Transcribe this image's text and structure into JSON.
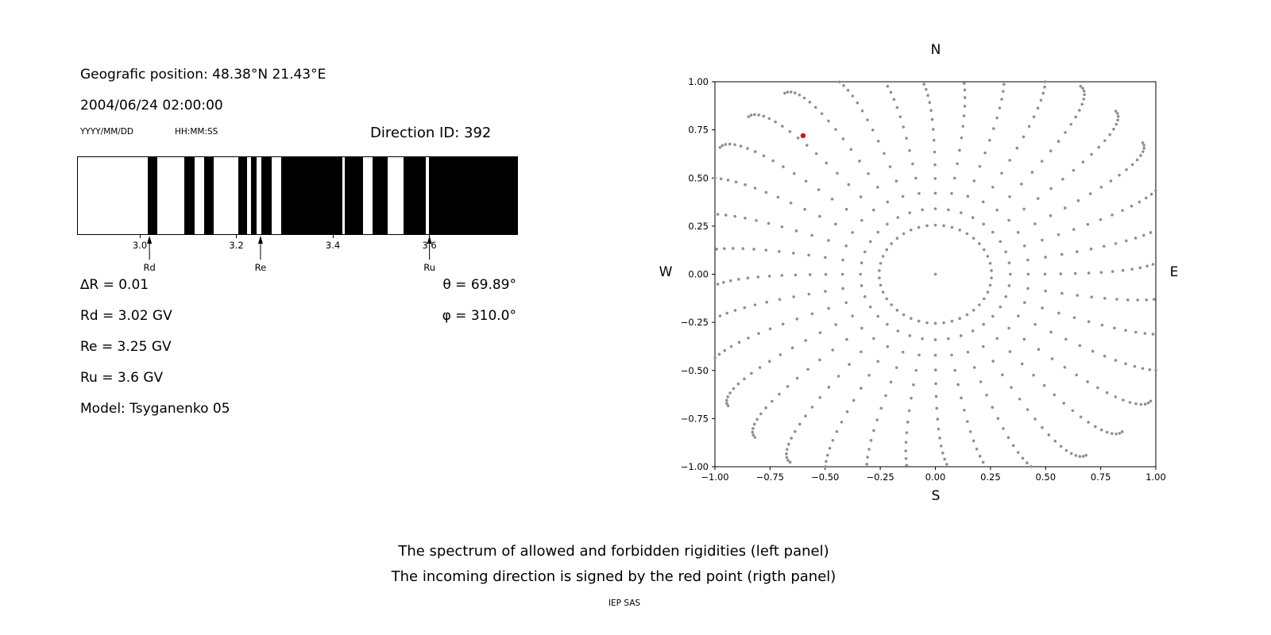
{
  "left_panel": {
    "geographic_position": "Geografic position: 48.38°N 21.43°E",
    "datetime": "2004/06/24 02:00:00",
    "date_format_label": "YYYY/MM/DD",
    "time_format_label": "HH:MM:SS",
    "direction_id": "Direction ID: 392",
    "delta_r": "∆R = 0.01",
    "theta": "θ = 69.89°",
    "rd": "Rd = 3.02 GV",
    "phi": "φ = 310.0°",
    "re": "Re = 3.25 GV",
    "ru": "Ru = 3.6 GV",
    "model": "Model: Tsyganenko 05"
  },
  "caption": {
    "line1": "The spectrum of allowed and forbidden rigidities (left panel)",
    "line2": "The incoming direction is signed by the red point (rigth panel)",
    "credit": "IEP SAS"
  },
  "chart_data": [
    {
      "id": "rigidity-spectrum",
      "type": "bar",
      "description": "Barcode spectrum of rigidities: black bands = allowed, white = forbidden",
      "x_range": [
        2.87,
        3.78
      ],
      "xticks": [
        3.0,
        3.2,
        3.4,
        3.6
      ],
      "xtick_labels": [
        "3.0",
        "3.2",
        "3.4",
        "3.6"
      ],
      "allowed_intervals_gv": [
        [
          3.015,
          3.034
        ],
        [
          3.09,
          3.112
        ],
        [
          3.131,
          3.152
        ],
        [
          3.203,
          3.221
        ],
        [
          3.228,
          3.24
        ],
        [
          3.25,
          3.272
        ],
        [
          3.292,
          3.418
        ],
        [
          3.423,
          3.46
        ],
        [
          3.48,
          3.512
        ],
        [
          3.545,
          3.59
        ],
        [
          3.598,
          3.78
        ]
      ],
      "markers": [
        {
          "label": "Rd",
          "value_gv": 3.02
        },
        {
          "label": "Re",
          "value_gv": 3.25
        },
        {
          "label": "Ru",
          "value_gv": 3.6
        }
      ],
      "bar_color": "#000000"
    },
    {
      "id": "incoming-direction",
      "type": "scatter",
      "description": "Sky map of viewing directions; gray dotted radial spokes every 10 degrees, red dot = incoming direction",
      "xlim": [
        -1.0,
        1.0
      ],
      "ylim": [
        -1.0,
        1.0
      ],
      "xticks": [
        -1.0,
        -0.75,
        -0.5,
        -0.25,
        0.0,
        0.25,
        0.5,
        0.75,
        1.0
      ],
      "xtick_labels": [
        "−1.00",
        "−0.75",
        "−0.50",
        "−0.25",
        "0.00",
        "0.25",
        "0.50",
        "0.75",
        "1.00"
      ],
      "yticks": [
        -1.0,
        -0.75,
        -0.5,
        -0.25,
        0.0,
        0.25,
        0.5,
        0.75,
        1.0
      ],
      "ytick_labels": [
        "−1.00",
        "−0.75",
        "−0.50",
        "−0.25",
        "0.00",
        "0.25",
        "0.50",
        "0.75",
        "1.00"
      ],
      "compass": {
        "top": "N",
        "bottom": "S",
        "left": "W",
        "right": "E"
      },
      "red_point": {
        "x": -0.6,
        "y": 0.72
      },
      "dot_color": "#8f8f8f",
      "red_color": "#dd1111",
      "pattern": {
        "spoke_count": 36,
        "spoke_step_deg": 10,
        "spoke_r_min": 0.34,
        "spoke_r_max_cardinal": 1.05,
        "spoke_r_max_diagonal_boost": 0.13,
        "dots_per_spoke": 18,
        "tip_density_exponent": 2.0,
        "curl_deg": -6,
        "inner_ring_radius": 0.255,
        "inner_ring_count": 42,
        "center_dot": true
      }
    }
  ]
}
